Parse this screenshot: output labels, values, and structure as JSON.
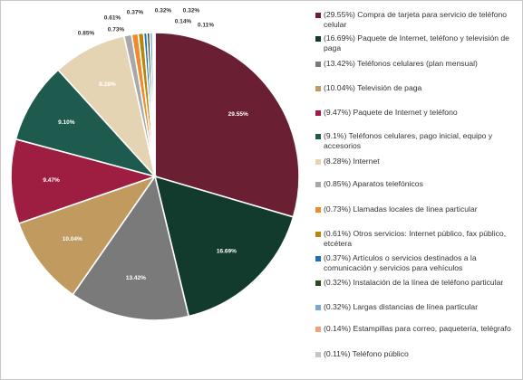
{
  "chart_data": {
    "type": "pie",
    "slices": [
      {
        "label": "(29.55%) Compra de tarjeta para servicio de teléfono celular",
        "value": 29.55,
        "data_label": "29.55%",
        "color": "#6b1f32"
      },
      {
        "label": "(16.69%) Paquete de Internet, teléfono y televisión de paga",
        "value": 16.69,
        "data_label": "16.69%",
        "color": "#123b2e"
      },
      {
        "label": "(13.42%) Teléfonos celulares (plan mensual)",
        "value": 13.42,
        "data_label": "13.42%",
        "color": "#7a7a7a"
      },
      {
        "label": "(10.04%) Televisión de paga",
        "value": 10.04,
        "data_label": "10.04%",
        "color": "#c09a5e"
      },
      {
        "label": "(9.47%) Paquete de Internet y teléfono",
        "value": 9.47,
        "data_label": "9.47%",
        "color": "#9e1e42"
      },
      {
        "label": "(9.1%) Teléfonos celulares, pago inicial, equipo y accesorios",
        "value": 9.1,
        "data_label": "9.10%",
        "color": "#1f5a4e"
      },
      {
        "label": "(8.28%) Internet",
        "value": 8.28,
        "data_label": "8.28%",
        "color": "#e5d4b4"
      },
      {
        "label": "(0.85%) Aparatos telefónicos",
        "value": 0.85,
        "data_label": "0.85%",
        "color": "#a8a8a8"
      },
      {
        "label": "(0.73%) Llamadas locales de línea particular",
        "value": 0.73,
        "data_label": "0.73%",
        "color": "#f08a2c"
      },
      {
        "label": "(0.61%) Otros servicios: Internet público, fax público, etcétera",
        "value": 0.61,
        "data_label": "0.61%",
        "color": "#b8860b"
      },
      {
        "label": "(0.37%) Artículos o servicios destinados a la comunicación y servicios para vehículos",
        "value": 0.37,
        "data_label": "0.37%",
        "color": "#1f6fb8"
      },
      {
        "label": "(0.32%) Instalación de la línea de teléfono particular",
        "value": 0.32,
        "data_label": "0.32%",
        "color": "#2d4a1e"
      },
      {
        "label": "(0.32%) Largas distancias de línea particular",
        "value": 0.32,
        "data_label": "0.32%",
        "color": "#7aa8d6"
      },
      {
        "label": "(0.14%) Estampillas para correo, paquetería, telégrafo",
        "value": 0.14,
        "data_label": "0.14%",
        "color": "#f2a27a"
      },
      {
        "label": "(0.11%) Teléfono público",
        "value": 0.11,
        "data_label": "0.11%",
        "color": "#c4c4c4"
      }
    ],
    "legend_position": "right"
  }
}
